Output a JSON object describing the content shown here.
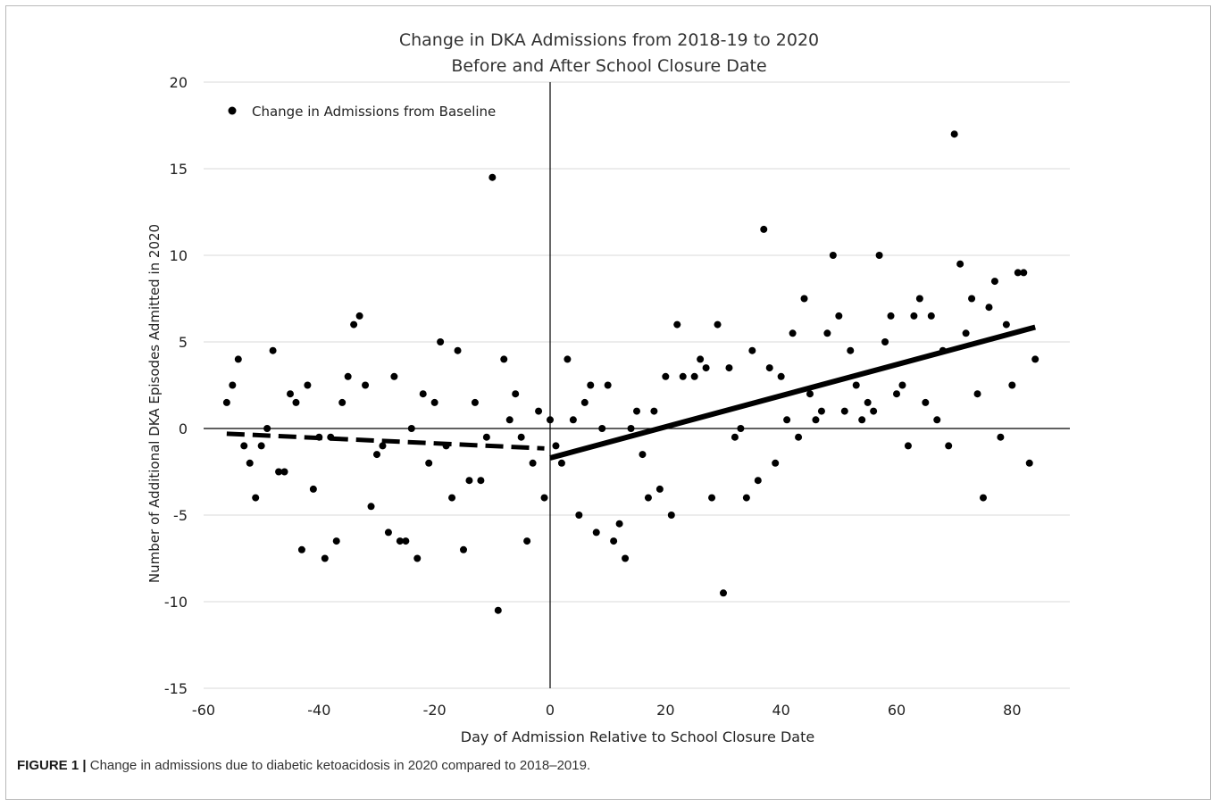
{
  "chart_data": {
    "type": "scatter",
    "title_line1": "Change in DKA Admissions from 2018-19 to 2020",
    "title_line2": "Before and After School Closure Date",
    "xlabel": "Day of Admission Relative to School Closure Date",
    "ylabel": "Number of Additional DKA Episodes Admitted in 2020",
    "xlim": [
      -60,
      90
    ],
    "ylim": [
      -15,
      20
    ],
    "x_ticks": [
      -60,
      -40,
      -20,
      0,
      20,
      40,
      60,
      80
    ],
    "y_ticks": [
      -15,
      -10,
      -5,
      0,
      5,
      10,
      15,
      20
    ],
    "grid": "horizontal",
    "legend_position": "top-left",
    "series": [
      {
        "name": "Change in Admissions from Baseline",
        "points": [
          [
            -56,
            1.5
          ],
          [
            -55,
            2.5
          ],
          [
            -54,
            4
          ],
          [
            -53,
            -1
          ],
          [
            -52,
            -2
          ],
          [
            -51,
            -4
          ],
          [
            -50,
            -1
          ],
          [
            -49,
            0
          ],
          [
            -48,
            4.5
          ],
          [
            -47,
            -2.5
          ],
          [
            -46,
            -2.5
          ],
          [
            -45,
            2
          ],
          [
            -44,
            1.5
          ],
          [
            -43,
            -7
          ],
          [
            -42,
            2.5
          ],
          [
            -41,
            -3.5
          ],
          [
            -40,
            -0.5
          ],
          [
            -39,
            -7.5
          ],
          [
            -38,
            -0.5
          ],
          [
            -37,
            -6.5
          ],
          [
            -36,
            1.5
          ],
          [
            -35,
            3
          ],
          [
            -34,
            6
          ],
          [
            -33,
            6.5
          ],
          [
            -32,
            2.5
          ],
          [
            -31,
            -4.5
          ],
          [
            -30,
            -1.5
          ],
          [
            -29,
            -1
          ],
          [
            -28,
            -6
          ],
          [
            -27,
            3
          ],
          [
            -26,
            -6.5
          ],
          [
            -25,
            -6.5
          ],
          [
            -24,
            0
          ],
          [
            -23,
            -7.5
          ],
          [
            -22,
            2
          ],
          [
            -21,
            -2
          ],
          [
            -20,
            1.5
          ],
          [
            -19,
            5
          ],
          [
            -18,
            -1
          ],
          [
            -17,
            -4
          ],
          [
            -16,
            4.5
          ],
          [
            -15,
            -7
          ],
          [
            -14,
            -3
          ],
          [
            -13,
            1.5
          ],
          [
            -12,
            -3
          ],
          [
            -11,
            -0.5
          ],
          [
            -10,
            14.5
          ],
          [
            -9,
            -10.5
          ],
          [
            -8,
            4
          ],
          [
            -7,
            0.5
          ],
          [
            -6,
            2
          ],
          [
            -5,
            -0.5
          ],
          [
            -4,
            -6.5
          ],
          [
            -3,
            -2
          ],
          [
            -2,
            1
          ],
          [
            -1,
            -4
          ],
          [
            0,
            0.5
          ],
          [
            1,
            -1
          ],
          [
            2,
            -2
          ],
          [
            3,
            4
          ],
          [
            4,
            0.5
          ],
          [
            5,
            -5
          ],
          [
            6,
            1.5
          ],
          [
            7,
            2.5
          ],
          [
            8,
            -6
          ],
          [
            9,
            0
          ],
          [
            10,
            2.5
          ],
          [
            11,
            -6.5
          ],
          [
            12,
            -5.5
          ],
          [
            13,
            -7.5
          ],
          [
            14,
            0
          ],
          [
            15,
            1
          ],
          [
            16,
            -1.5
          ],
          [
            17,
            -4
          ],
          [
            18,
            1
          ],
          [
            19,
            -3.5
          ],
          [
            20,
            3
          ],
          [
            21,
            -5
          ],
          [
            22,
            6
          ],
          [
            23,
            3
          ],
          [
            25,
            3
          ],
          [
            26,
            4
          ],
          [
            27,
            3.5
          ],
          [
            28,
            -4
          ],
          [
            29,
            6
          ],
          [
            30,
            -9.5
          ],
          [
            31,
            3.5
          ],
          [
            32,
            -0.5
          ],
          [
            33,
            0
          ],
          [
            34,
            -4
          ],
          [
            35,
            4.5
          ],
          [
            36,
            -3
          ],
          [
            37,
            11.5
          ],
          [
            38,
            3.5
          ],
          [
            39,
            -2
          ],
          [
            40,
            3
          ],
          [
            41,
            0.5
          ],
          [
            42,
            5.5
          ],
          [
            43,
            -0.5
          ],
          [
            44,
            7.5
          ],
          [
            45,
            2
          ],
          [
            46,
            0.5
          ],
          [
            47,
            1
          ],
          [
            48,
            5.5
          ],
          [
            49,
            10
          ],
          [
            50,
            6.5
          ],
          [
            51,
            1
          ],
          [
            52,
            4.5
          ],
          [
            53,
            2.5
          ],
          [
            54,
            0.5
          ],
          [
            55,
            1.5
          ],
          [
            56,
            1
          ],
          [
            57,
            10
          ],
          [
            58,
            5
          ],
          [
            59,
            6.5
          ],
          [
            60,
            2
          ],
          [
            61,
            2.5
          ],
          [
            62,
            -1
          ],
          [
            63,
            6.5
          ],
          [
            64,
            7.5
          ],
          [
            65,
            1.5
          ],
          [
            66,
            6.5
          ],
          [
            67,
            0.5
          ],
          [
            68,
            4.5
          ],
          [
            69,
            -1
          ],
          [
            70,
            17
          ],
          [
            71,
            9.5
          ],
          [
            72,
            5.5
          ],
          [
            73,
            7.5
          ],
          [
            74,
            2
          ],
          [
            75,
            -4
          ],
          [
            76,
            7
          ],
          [
            77,
            8.5
          ],
          [
            78,
            -0.5
          ],
          [
            79,
            6
          ],
          [
            80,
            2.5
          ],
          [
            81,
            9
          ],
          [
            82,
            9
          ],
          [
            83,
            -2
          ],
          [
            84,
            4
          ]
        ]
      }
    ],
    "trendlines": [
      {
        "style": "dashed",
        "x": [
          -56,
          -1
        ],
        "y": [
          -0.3,
          -1.15
        ]
      },
      {
        "style": "solid",
        "x": [
          0,
          84
        ],
        "y": [
          -1.7,
          5.85
        ]
      }
    ]
  },
  "caption": {
    "label": "FIGURE 1",
    "separator": "|",
    "text": "Change in admissions due to diabetic ketoacidosis in 2020 compared to 2018–2019."
  }
}
